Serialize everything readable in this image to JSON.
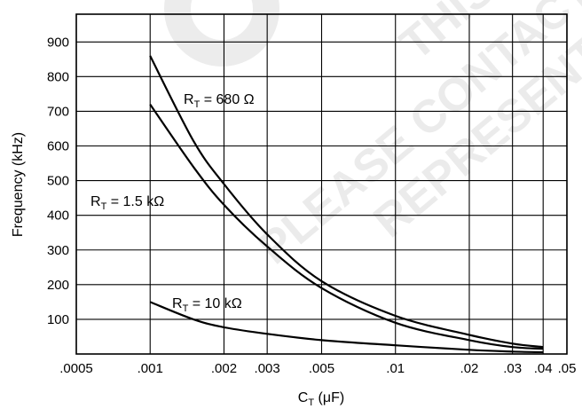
{
  "chart_data": {
    "type": "line",
    "x_scale": "log",
    "x_tick_labels": [
      ".0005",
      ".001",
      ".002",
      ".003",
      ".005",
      ".01",
      ".02",
      ".03",
      ".04",
      ".05"
    ],
    "x_ticks": [
      0.0005,
      0.001,
      0.002,
      0.003,
      0.005,
      0.01,
      0.02,
      0.03,
      0.04,
      0.05
    ],
    "y_tick_labels": [
      "100",
      "200",
      "300",
      "400",
      "500",
      "600",
      "700",
      "800",
      "900"
    ],
    "y_ticks": [
      100,
      200,
      300,
      400,
      500,
      600,
      700,
      800,
      900
    ],
    "xlabel_main": "C",
    "xlabel_sub": "T",
    "xlabel_unit": " (μF)",
    "ylabel": "Frequency (kHz)",
    "xlim": [
      0.0005,
      0.05
    ],
    "ylim": [
      0,
      980
    ],
    "grid": true,
    "series": [
      {
        "label_main": "R",
        "label_sub": "T",
        "label_value": " = 680 Ω",
        "x": [
          0.001,
          0.0015,
          0.002,
          0.003,
          0.005,
          0.01,
          0.02,
          0.03,
          0.04
        ],
        "y": [
          860,
          615,
          490,
          345,
          210,
          110,
          55,
          30,
          20
        ]
      },
      {
        "label_main": "R",
        "label_sub": "T",
        "label_value": " = 1.5 kΩ",
        "x": [
          0.001,
          0.0015,
          0.002,
          0.003,
          0.005,
          0.01,
          0.02,
          0.03,
          0.04
        ],
        "y": [
          720,
          540,
          430,
          310,
          190,
          90,
          40,
          20,
          15
        ]
      },
      {
        "label_main": "R",
        "label_sub": "T",
        "label_value": " = 10 kΩ",
        "x": [
          0.001,
          0.0015,
          0.002,
          0.003,
          0.005,
          0.01,
          0.02,
          0.03,
          0.04
        ],
        "y": [
          150,
          100,
          77,
          58,
          40,
          25,
          12,
          7,
          5
        ]
      }
    ]
  },
  "watermark": {
    "lines": [
      "THIS",
      "PLEASE CONTACT",
      "REPRESENT"
    ]
  }
}
